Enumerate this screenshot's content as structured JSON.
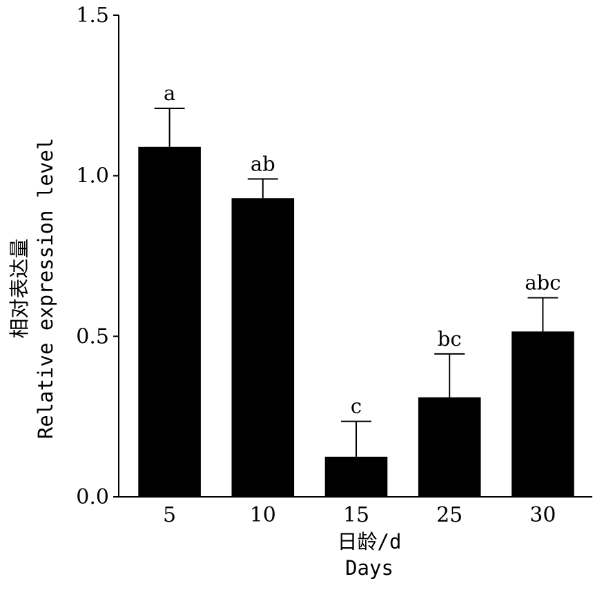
{
  "chart_data": {
    "type": "bar",
    "categories": [
      "5",
      "10",
      "15",
      "25",
      "30"
    ],
    "values": [
      1.09,
      0.93,
      0.125,
      0.31,
      0.515
    ],
    "error_upper": [
      1.21,
      0.99,
      0.235,
      0.445,
      0.62
    ],
    "significance_labels": [
      "a",
      "ab",
      "c",
      "bc",
      "abc"
    ],
    "ylim": [
      0.0,
      1.5
    ],
    "yticks": [
      0.0,
      0.5,
      1.0,
      1.5
    ],
    "ytick_labels": [
      "0.0",
      "0.5",
      "1.0",
      "1.5"
    ],
    "ylabel_cn": "相对表达量",
    "ylabel_en": "Relative expression level",
    "xlabel_cn": "日龄/d",
    "xlabel_en": "Days",
    "grid": false,
    "bar_color": "#000000"
  }
}
